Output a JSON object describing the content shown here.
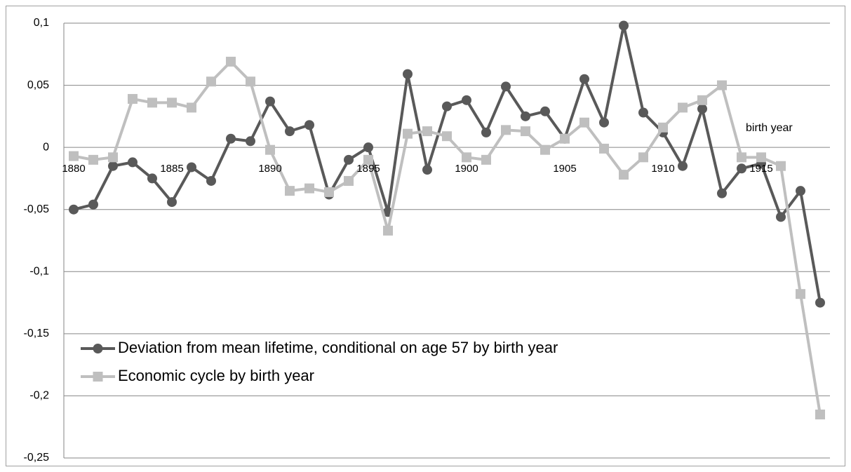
{
  "chart_data": {
    "type": "line",
    "x": [
      1880,
      1881,
      1882,
      1883,
      1884,
      1885,
      1886,
      1887,
      1888,
      1889,
      1890,
      1891,
      1892,
      1893,
      1894,
      1895,
      1896,
      1897,
      1898,
      1899,
      1900,
      1901,
      1902,
      1903,
      1904,
      1905,
      1906,
      1907,
      1908,
      1909,
      1910,
      1911,
      1912,
      1913,
      1914,
      1915,
      1916,
      1917,
      1918
    ],
    "xlim": [
      1879.5,
      1918.5
    ],
    "xticks": [
      1880,
      1885,
      1890,
      1895,
      1900,
      1905,
      1910,
      1915
    ],
    "ylim": [
      -0.25,
      0.1
    ],
    "yticks": [
      {
        "value": -0.25,
        "label": "-0,25"
      },
      {
        "value": -0.2,
        "label": "-0,2"
      },
      {
        "value": -0.15,
        "label": "-0,15"
      },
      {
        "value": -0.1,
        "label": "-0,1"
      },
      {
        "value": -0.05,
        "label": "-0,05"
      },
      {
        "value": 0,
        "label": "0"
      },
      {
        "value": 0.05,
        "label": "0,05"
      },
      {
        "value": 0.1,
        "label": "0,1"
      }
    ],
    "grid": true,
    "annotation": "birth year",
    "series": [
      {
        "name": "Deviation from mean lifetime, conditional on age 57 by birth year",
        "color": "#595959",
        "marker": "circle",
        "values": [
          -0.05,
          -0.046,
          -0.015,
          -0.012,
          -0.025,
          -0.044,
          -0.016,
          -0.027,
          0.007,
          0.005,
          0.037,
          0.013,
          0.018,
          -0.038,
          -0.01,
          0,
          -0.052,
          0.059,
          -0.018,
          0.033,
          0.038,
          0.012,
          0.049,
          0.025,
          0.029,
          0.007,
          0.055,
          0.02,
          0.098,
          0.028,
          0.012,
          -0.015,
          0.031,
          -0.037,
          -0.017,
          -0.013,
          -0.056,
          -0.035,
          -0.125
        ]
      },
      {
        "name": "Economic cycle by birth year",
        "color": "#bfbfbf",
        "marker": "square",
        "values": [
          -0.007,
          -0.01,
          -0.008,
          0.039,
          0.036,
          0.036,
          0.032,
          0.053,
          0.069,
          0.053,
          -0.002,
          -0.035,
          -0.033,
          -0.036,
          -0.027,
          -0.01,
          -0.067,
          0.011,
          0.013,
          0.009,
          -0.008,
          -0.01,
          0.014,
          0.013,
          -0.002,
          0.007,
          0.02,
          -0.001,
          -0.022,
          -0.008,
          0.016,
          0.032,
          0.038,
          0.05,
          -0.008,
          -0.008,
          -0.015,
          -0.118,
          -0.215
        ]
      }
    ]
  }
}
